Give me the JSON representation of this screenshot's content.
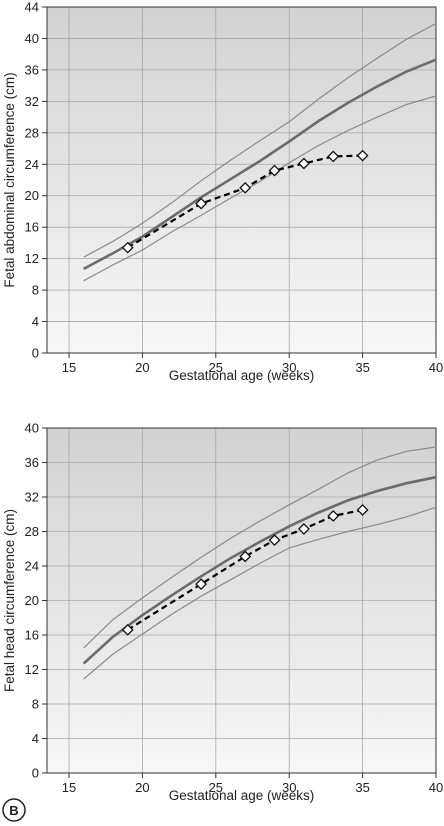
{
  "panel_label": "B",
  "colors": {
    "background_top": "#d2d2d2",
    "background_bottom": "#f7f7f7",
    "grid": "#a8a8a8",
    "median": "#6b6b6b",
    "centile": "#8a8a8a",
    "observed": "#000000"
  },
  "chart_data": [
    {
      "type": "line",
      "xlabel": "Gestational age (weeks)",
      "ylabel": "Fetal abdominal circumference (cm)",
      "xlim": [
        13.5,
        40
      ],
      "ylim": [
        0,
        44
      ],
      "xticks": [
        15,
        20,
        25,
        30,
        35,
        40
      ],
      "yticks": [
        0,
        4,
        8,
        12,
        16,
        20,
        24,
        28,
        32,
        36,
        40,
        44
      ],
      "grid": true,
      "series": [
        {
          "role": "upper",
          "x": [
            16,
            18,
            20,
            22,
            24,
            26,
            28,
            30,
            32,
            34,
            36,
            38,
            40
          ],
          "y": [
            12.2,
            14.2,
            16.5,
            19.1,
            21.9,
            24.5,
            27.0,
            29.4,
            32.3,
            35.0,
            37.5,
            39.9,
            41.9
          ]
        },
        {
          "role": "median",
          "x": [
            16,
            18,
            20,
            22,
            24,
            26,
            28,
            30,
            32,
            34,
            36,
            38,
            40
          ],
          "y": [
            10.7,
            12.7,
            14.8,
            17.3,
            19.8,
            22.1,
            24.4,
            26.9,
            29.5,
            31.8,
            33.9,
            35.8,
            37.3
          ]
        },
        {
          "role": "lower",
          "x": [
            16,
            18,
            20,
            22,
            24,
            26,
            28,
            30,
            32,
            34,
            36,
            38,
            40
          ],
          "y": [
            9.2,
            11.2,
            13.1,
            15.4,
            17.5,
            19.7,
            21.8,
            24.2,
            26.4,
            28.3,
            30.0,
            31.6,
            32.7
          ]
        },
        {
          "role": "observed",
          "x": [
            19,
            24,
            27,
            29,
            31,
            33,
            35
          ],
          "y": [
            13.4,
            19.0,
            21.0,
            23.2,
            24.1,
            25.0,
            25.1
          ]
        }
      ]
    },
    {
      "type": "line",
      "xlabel": "Gestational age (weeks)",
      "ylabel": "Fetal head circumference (cm)",
      "xlim": [
        13.5,
        40
      ],
      "ylim": [
        0,
        40
      ],
      "xticks": [
        15,
        20,
        25,
        30,
        35,
        40
      ],
      "yticks": [
        0,
        4,
        8,
        12,
        16,
        20,
        24,
        28,
        32,
        36,
        40
      ],
      "grid": true,
      "series": [
        {
          "role": "upper",
          "x": [
            16,
            18,
            20,
            22,
            24,
            26,
            28,
            30,
            32,
            34,
            36,
            38,
            40
          ],
          "y": [
            14.5,
            17.8,
            20.3,
            22.7,
            25.0,
            27.2,
            29.2,
            31.1,
            32.9,
            34.8,
            36.3,
            37.3,
            37.8
          ]
        },
        {
          "role": "median",
          "x": [
            16,
            18,
            20,
            22,
            24,
            26,
            28,
            30,
            32,
            34,
            36,
            38,
            40
          ],
          "y": [
            12.7,
            15.8,
            18.3,
            20.6,
            22.8,
            24.9,
            26.8,
            28.6,
            30.2,
            31.6,
            32.7,
            33.6,
            34.3
          ]
        },
        {
          "role": "lower",
          "x": [
            16,
            18,
            20,
            22,
            24,
            26,
            28,
            30,
            32,
            34,
            36,
            38,
            40
          ],
          "y": [
            10.9,
            13.8,
            16.1,
            18.4,
            20.5,
            22.4,
            24.3,
            26.1,
            27.1,
            28.0,
            28.8,
            29.7,
            30.8
          ]
        },
        {
          "role": "observed",
          "x": [
            19,
            24,
            27,
            29,
            31,
            33,
            35
          ],
          "y": [
            16.6,
            21.9,
            25.1,
            27.0,
            28.3,
            29.8,
            30.5
          ]
        }
      ]
    }
  ]
}
